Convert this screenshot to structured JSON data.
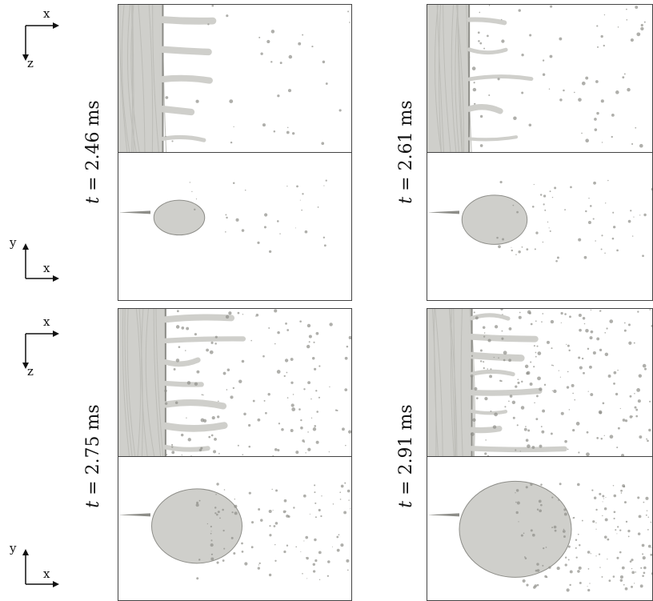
{
  "figure": {
    "rows": [
      {
        "label_prefix": "t",
        "label_value": "= 2.46 ms"
      },
      {
        "label_prefix": "t",
        "label_value": "= 2.61 ms"
      },
      {
        "label_prefix": "t",
        "label_value": "= 2.75 ms"
      },
      {
        "label_prefix": "t",
        "label_value": "= 2.91 ms"
      }
    ],
    "axes_top": {
      "horizontal": "x",
      "vertical": "z"
    },
    "axes_bottom": {
      "horizontal": "x",
      "vertical": "y"
    }
  },
  "colors": {
    "liquid": "#cfcfcb",
    "liquid_dark": "#8d8d88",
    "frame": "#444444"
  }
}
